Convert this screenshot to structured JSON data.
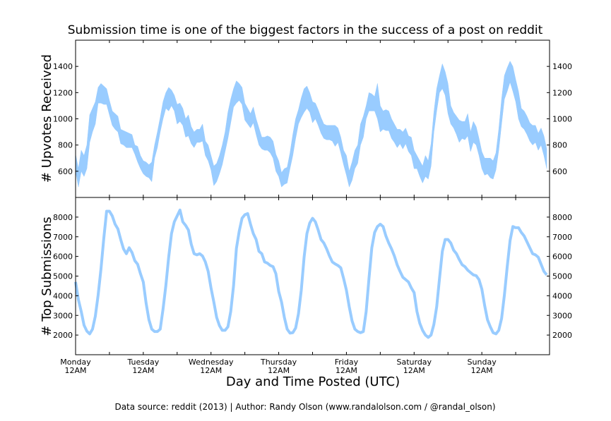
{
  "colors": {
    "series": "#99CCFF",
    "axes": "#000000",
    "background": "#FFFFFF"
  },
  "footer": "Data source: reddit (2013) | Author: Randy Olson (www.randalolson.com / @randal_olson)",
  "chart_data": [
    {
      "type": "area",
      "title": "Submission time is one of the biggest factors in the success of a post on reddit",
      "ylabel": "# Upvotes Received",
      "xlabel": "",
      "x_start": "Monday 12AM",
      "x_step": "1 hour",
      "ylim": [
        400,
        1600
      ],
      "yticks": [
        600,
        800,
        1000,
        1200,
        1400
      ],
      "grid": false,
      "series": [
        {
          "lower": [
            600,
            480,
            600,
            560,
            620,
            820,
            900,
            960,
            1120,
            1120,
            1110,
            1110,
            1030,
            950,
            920,
            900,
            810,
            800,
            780,
            780,
            780,
            730,
            670,
            620,
            580,
            560,
            550,
            520,
            700,
            780,
            900,
            1000,
            1080,
            1060,
            1100,
            1060,
            960,
            980,
            950,
            860,
            870,
            810,
            780,
            820,
            820,
            830,
            720,
            680,
            610,
            490,
            520,
            580,
            650,
            750,
            850,
            970,
            1090,
            1120,
            1140,
            1110,
            990,
            960,
            930,
            970,
            880,
            800,
            770,
            760,
            760,
            740,
            700,
            600,
            560,
            480,
            500,
            510,
            620,
            720,
            850,
            960,
            1010,
            1050,
            1080,
            1050,
            970,
            1000,
            950,
            890,
            850,
            840,
            840,
            830,
            790,
            820,
            740,
            650,
            570,
            480,
            530,
            620,
            660,
            800,
            860,
            1000,
            1060,
            1060,
            1060,
            1000,
            900,
            920,
            910,
            910,
            850,
            820,
            780,
            810,
            770,
            810,
            750,
            720,
            620,
            620,
            560,
            510,
            560,
            540,
            640,
            900,
            1060,
            1200,
            1230,
            1180,
            1040,
            960,
            930,
            880,
            820,
            850,
            840,
            870,
            750,
            820,
            800,
            720,
            620,
            570,
            580,
            550,
            540,
            610,
            760,
            960,
            1150,
            1210,
            1280,
            1210,
            1130,
            1000,
            940,
            920,
            880,
            830,
            800,
            820,
            760,
            800,
            720,
            620
          ],
          "upper": [
            730,
            620,
            760,
            720,
            800,
            1030,
            1080,
            1130,
            1240,
            1270,
            1250,
            1230,
            1140,
            1060,
            1040,
            1020,
            920,
            910,
            900,
            890,
            880,
            800,
            790,
            720,
            680,
            670,
            650,
            670,
            800,
            900,
            1010,
            1130,
            1200,
            1240,
            1220,
            1180,
            1110,
            1120,
            1080,
            1000,
            1030,
            940,
            900,
            920,
            920,
            960,
            830,
            800,
            720,
            640,
            660,
            720,
            800,
            900,
            1050,
            1150,
            1230,
            1290,
            1270,
            1240,
            1120,
            1080,
            1040,
            1090,
            1000,
            930,
            860,
            860,
            870,
            860,
            830,
            730,
            680,
            590,
            620,
            630,
            740,
            880,
            1000,
            1070,
            1160,
            1230,
            1250,
            1200,
            1130,
            1120,
            1070,
            1010,
            960,
            950,
            950,
            950,
            950,
            930,
            860,
            760,
            720,
            600,
            670,
            760,
            800,
            960,
            1020,
            1100,
            1200,
            1190,
            1170,
            1270,
            1100,
            1060,
            1070,
            1060,
            1000,
            960,
            920,
            920,
            900,
            930,
            870,
            860,
            760,
            720,
            680,
            640,
            720,
            680,
            810,
            1050,
            1230,
            1330,
            1420,
            1360,
            1270,
            1100,
            1050,
            1020,
            990,
            980,
            980,
            1040,
            900,
            980,
            940,
            850,
            750,
            700,
            700,
            700,
            680,
            740,
            920,
            1150,
            1330,
            1390,
            1440,
            1400,
            1300,
            1210,
            1080,
            1060,
            1020,
            970,
            950,
            950,
            890,
            930,
            870,
            770
          ]
        }
      ]
    },
    {
      "type": "line",
      "ylabel": "# Top Submissions",
      "xlabel": "Day and Time Posted (UTC)",
      "x_start": "Monday 12AM",
      "x_step": "1 hour",
      "ylim": [
        1000,
        9000
      ],
      "yticks": [
        2000,
        3000,
        4000,
        5000,
        6000,
        7000,
        8000
      ],
      "xtick_labels": [
        [
          "Monday",
          "12AM"
        ],
        [
          "Tuesday",
          "12AM"
        ],
        [
          "Wednesday",
          "12AM"
        ],
        [
          "Thursday",
          "12AM"
        ],
        [
          "Friday",
          "12AM"
        ],
        [
          "Saturday",
          "12AM"
        ],
        [
          "Sunday",
          "12AM"
        ]
      ],
      "grid": false,
      "series": [
        {
          "values": [
            4700,
            3800,
            3200,
            2500,
            2200,
            2060,
            2300,
            2960,
            4040,
            5360,
            6920,
            8300,
            8300,
            8060,
            7640,
            7400,
            6860,
            6380,
            6140,
            6440,
            6200,
            5780,
            5600,
            5120,
            4700,
            3620,
            2780,
            2300,
            2180,
            2180,
            2300,
            3320,
            4520,
            5960,
            7160,
            7760,
            8060,
            8360,
            7760,
            7580,
            7340,
            6620,
            6140,
            6080,
            6140,
            6020,
            5720,
            5240,
            4400,
            3680,
            2900,
            2480,
            2240,
            2240,
            2420,
            3200,
            4520,
            6400,
            7280,
            7940,
            8120,
            8180,
            7640,
            7160,
            6860,
            6260,
            6140,
            5720,
            5660,
            5540,
            5480,
            5120,
            4220,
            3680,
            2900,
            2300,
            2100,
            2120,
            2360,
            3080,
            4280,
            5960,
            7160,
            7700,
            7940,
            7760,
            7340,
            6860,
            6680,
            6380,
            6020,
            5720,
            5620,
            5540,
            5420,
            4880,
            4280,
            3440,
            2720,
            2300,
            2180,
            2120,
            2180,
            3200,
            4880,
            6440,
            7220,
            7520,
            7640,
            7520,
            7040,
            6680,
            6380,
            6020,
            5570,
            5240,
            4940,
            4820,
            4700,
            4400,
            4160,
            3200,
            2600,
            2240,
            2000,
            1880,
            2000,
            2540,
            3440,
            4880,
            6260,
            6860,
            6860,
            6680,
            6320,
            6140,
            5840,
            5580,
            5480,
            5300,
            5180,
            5060,
            5020,
            4820,
            4340,
            3500,
            2780,
            2420,
            2120,
            2060,
            2240,
            2840,
            4040,
            5480,
            6800,
            7520,
            7460,
            7460,
            7220,
            7040,
            6740,
            6440,
            6140,
            6080,
            5960,
            5600,
            5240,
            5060
          ]
        }
      ]
    }
  ]
}
